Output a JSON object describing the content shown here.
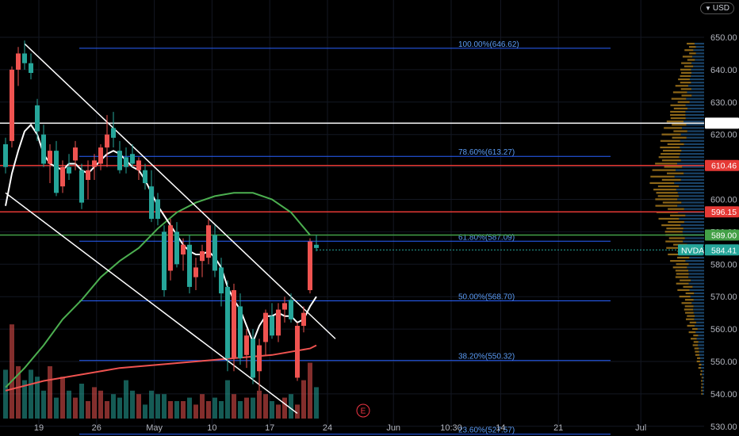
{
  "currency": {
    "code": "USD",
    "icon": "chevron-down-icon"
  },
  "chart_data": {
    "type": "candlestick",
    "symbol": "NVDA",
    "last_price": "584.41",
    "ylim": [
      525,
      654
    ],
    "y_ticks": [
      "650.00",
      "640.00",
      "630.00",
      "620.00",
      "610.00",
      "600.00",
      "590.00",
      "580.00",
      "570.00",
      "560.00",
      "550.00",
      "540.00",
      "530.00"
    ],
    "x_ticks": [
      "19",
      "26",
      "May",
      "10",
      "17",
      "24",
      "Jun",
      "10:30",
      "14",
      "21",
      "Jul"
    ],
    "x_tick_days": [
      0,
      7,
      14,
      21,
      28,
      35,
      43,
      50,
      56,
      63,
      73
    ],
    "candles": [
      {
        "o": 617,
        "h": 619,
        "l": 608,
        "c": 610
      },
      {
        "o": 618,
        "h": 641,
        "l": 616,
        "c": 640
      },
      {
        "o": 640,
        "h": 647,
        "l": 635,
        "c": 645
      },
      {
        "o": 645,
        "h": 649,
        "l": 640,
        "c": 642
      },
      {
        "o": 642,
        "h": 645,
        "l": 637,
        "c": 639
      },
      {
        "o": 629,
        "h": 631,
        "l": 618,
        "c": 621
      },
      {
        "o": 620,
        "h": 623,
        "l": 610,
        "c": 611
      },
      {
        "o": 611,
        "h": 617,
        "l": 605,
        "c": 615
      },
      {
        "o": 615,
        "h": 618,
        "l": 601,
        "c": 602
      },
      {
        "o": 604,
        "h": 612,
        "l": 602,
        "c": 610
      },
      {
        "o": 610,
        "h": 614,
        "l": 606,
        "c": 608
      },
      {
        "o": 612,
        "h": 618,
        "l": 609,
        "c": 616
      },
      {
        "o": 609,
        "h": 611,
        "l": 597,
        "c": 599
      },
      {
        "o": 606,
        "h": 612,
        "l": 600,
        "c": 609
      },
      {
        "o": 610,
        "h": 614,
        "l": 606,
        "c": 612
      },
      {
        "o": 611,
        "h": 617,
        "l": 609,
        "c": 616
      },
      {
        "o": 616,
        "h": 626,
        "l": 610,
        "c": 620
      },
      {
        "o": 622,
        "h": 627,
        "l": 616,
        "c": 619
      },
      {
        "o": 615,
        "h": 618,
        "l": 608,
        "c": 609
      },
      {
        "o": 613,
        "h": 616,
        "l": 608,
        "c": 610
      },
      {
        "o": 614,
        "h": 617,
        "l": 610,
        "c": 611
      },
      {
        "o": 609,
        "h": 613,
        "l": 606,
        "c": 612
      },
      {
        "o": 609,
        "h": 611,
        "l": 603,
        "c": 605
      },
      {
        "o": 604,
        "h": 609,
        "l": 593,
        "c": 594
      },
      {
        "o": 600,
        "h": 602,
        "l": 592,
        "c": 594
      },
      {
        "o": 590,
        "h": 592,
        "l": 570,
        "c": 572
      },
      {
        "o": 578,
        "h": 594,
        "l": 575,
        "c": 592
      },
      {
        "o": 590,
        "h": 593,
        "l": 579,
        "c": 580
      },
      {
        "o": 583,
        "h": 588,
        "l": 578,
        "c": 586
      },
      {
        "o": 586,
        "h": 589,
        "l": 571,
        "c": 573
      },
      {
        "o": 576,
        "h": 582,
        "l": 572,
        "c": 579
      },
      {
        "o": 581,
        "h": 586,
        "l": 576,
        "c": 584
      },
      {
        "o": 582,
        "h": 594,
        "l": 580,
        "c": 592
      },
      {
        "o": 589,
        "h": 592,
        "l": 576,
        "c": 578
      },
      {
        "o": 579,
        "h": 582,
        "l": 567,
        "c": 571
      },
      {
        "o": 573,
        "h": 575,
        "l": 547,
        "c": 551
      },
      {
        "o": 551,
        "h": 574,
        "l": 547,
        "c": 572
      },
      {
        "o": 567,
        "h": 571,
        "l": 549,
        "c": 551
      },
      {
        "o": 552,
        "h": 560,
        "l": 548,
        "c": 558
      },
      {
        "o": 557,
        "h": 560,
        "l": 543,
        "c": 545
      },
      {
        "o": 547,
        "h": 557,
        "l": 541,
        "c": 555
      },
      {
        "o": 556,
        "h": 566,
        "l": 552,
        "c": 565
      },
      {
        "o": 564,
        "h": 568,
        "l": 557,
        "c": 558
      },
      {
        "o": 558,
        "h": 568,
        "l": 556,
        "c": 566
      },
      {
        "o": 566,
        "h": 570,
        "l": 562,
        "c": 568
      },
      {
        "o": 569,
        "h": 571,
        "l": 562,
        "c": 563
      },
      {
        "o": 545,
        "h": 562,
        "l": 544,
        "c": 561
      },
      {
        "o": 561,
        "h": 567,
        "l": 559,
        "c": 565
      },
      {
        "o": 572,
        "h": 588,
        "l": 571,
        "c": 587
      },
      {
        "o": 586,
        "h": 589,
        "l": 584,
        "c": 585
      }
    ],
    "volume": [
      14,
      27,
      15,
      11,
      14,
      12,
      8,
      15,
      6,
      12,
      8,
      6,
      10,
      5,
      9,
      8,
      5,
      7,
      6,
      11,
      8,
      7,
      4,
      8,
      7,
      7,
      5,
      5,
      5,
      6,
      4,
      7,
      5,
      6,
      5,
      11,
      7,
      5,
      6,
      6,
      8,
      7,
      5,
      4,
      6,
      7,
      4,
      11,
      16,
      9
    ],
    "ma_fast_name": "MA (white)",
    "ma_fast": [
      [
        0,
        598
      ],
      [
        1,
        608
      ],
      [
        2,
        615
      ],
      [
        3,
        621
      ],
      [
        4,
        623
      ],
      [
        5,
        620
      ],
      [
        6,
        614
      ],
      [
        7,
        611
      ],
      [
        8,
        610
      ],
      [
        9,
        609
      ],
      [
        10,
        611
      ],
      [
        11,
        611
      ],
      [
        12,
        609
      ],
      [
        13,
        608
      ],
      [
        14,
        610
      ],
      [
        15,
        612
      ],
      [
        16,
        614
      ],
      [
        17,
        615
      ],
      [
        18,
        614
      ],
      [
        19,
        612
      ],
      [
        20,
        610
      ],
      [
        21,
        609
      ],
      [
        22,
        606
      ],
      [
        23,
        602
      ],
      [
        24,
        598
      ],
      [
        25,
        595
      ],
      [
        26,
        592
      ],
      [
        27,
        589
      ],
      [
        28,
        586
      ],
      [
        29,
        584
      ],
      [
        30,
        583
      ],
      [
        31,
        583
      ],
      [
        32,
        584
      ],
      [
        33,
        582
      ],
      [
        34,
        579
      ],
      [
        35,
        573
      ],
      [
        36,
        569
      ],
      [
        37,
        566
      ],
      [
        38,
        561
      ],
      [
        39,
        556
      ],
      [
        40,
        561
      ],
      [
        41,
        564
      ],
      [
        42,
        564
      ],
      [
        43,
        565
      ],
      [
        44,
        564
      ],
      [
        45,
        564
      ],
      [
        46,
        562
      ],
      [
        47,
        563
      ],
      [
        48,
        567
      ],
      [
        49,
        570
      ]
    ],
    "ma_mid_name": "MA (green)",
    "ma_mid": [
      [
        0,
        542
      ],
      [
        3,
        548
      ],
      [
        6,
        555
      ],
      [
        9,
        563
      ],
      [
        12,
        569
      ],
      [
        15,
        576
      ],
      [
        18,
        581
      ],
      [
        21,
        585
      ],
      [
        24,
        591
      ],
      [
        27,
        596
      ],
      [
        30,
        599
      ],
      [
        33,
        601
      ],
      [
        36,
        602
      ],
      [
        39,
        602
      ],
      [
        42,
        600
      ],
      [
        45,
        596
      ],
      [
        48,
        589
      ]
    ],
    "ma_slow_name": "MA (red)",
    "ma_slow": [
      [
        0,
        541
      ],
      [
        6,
        544
      ],
      [
        12,
        546
      ],
      [
        18,
        548
      ],
      [
        24,
        549
      ],
      [
        30,
        550
      ],
      [
        36,
        551
      ],
      [
        42,
        552
      ],
      [
        48,
        554
      ],
      [
        49,
        555
      ]
    ],
    "channel_upper": [
      [
        3,
        648
      ],
      [
        52,
        557
      ]
    ],
    "channel_lower": [
      [
        0,
        602
      ],
      [
        46,
        534
      ]
    ],
    "horizontal_levels": [
      {
        "value": 623.5,
        "label": "623.50",
        "color": "#ffffff"
      },
      {
        "value": 610.46,
        "label": "610.46",
        "color": "#e53935"
      },
      {
        "value": 596.15,
        "label": "596.15",
        "color": "#e53935"
      },
      {
        "value": 589.0,
        "label": "589.00",
        "color": "#43a047"
      }
    ],
    "fibonacci": [
      {
        "value": 646.62,
        "label": "100.00%(646.62)"
      },
      {
        "value": 613.27,
        "label": "78.60%(613.27)"
      },
      {
        "value": 587.09,
        "label": "61.80%(587.09)"
      },
      {
        "value": 568.7,
        "label": "50.00%(568.70)"
      },
      {
        "value": 550.32,
        "label": "38.20%(550.32)"
      },
      {
        "value": 527.57,
        "label": "23.60%(527.57)"
      }
    ],
    "fib_color": "#2962ff",
    "earnings_marker": {
      "label": "E",
      "color": "#f23645"
    },
    "colors": {
      "up": "#ef5350",
      "down": "#26a69a",
      "volume_up": "#ef5350",
      "volume_down": "#26a69a",
      "ma_fast": "#ffffff",
      "ma_mid": "#4caf50",
      "ma_slow": "#ef5350",
      "channel": "#ffffff"
    }
  }
}
